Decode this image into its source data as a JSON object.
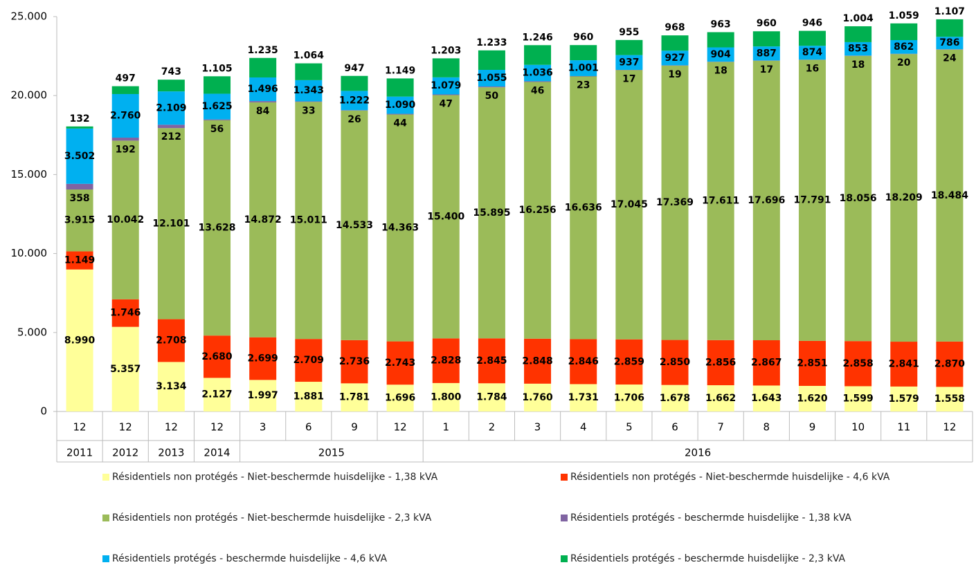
{
  "chart_data": {
    "type": "stacked_bar",
    "categories": [
      "12",
      "12",
      "12",
      "12",
      "3",
      "6",
      "9",
      "12",
      "1",
      "2",
      "3",
      "4",
      "5",
      "6",
      "7",
      "8",
      "9",
      "10",
      "11",
      "12"
    ],
    "x_groups": [
      {
        "label": "2011",
        "count": 1
      },
      {
        "label": "2012",
        "count": 1
      },
      {
        "label": "2013",
        "count": 1
      },
      {
        "label": "2014",
        "count": 1
      },
      {
        "label": "2015",
        "count": 4
      },
      {
        "label": "2016",
        "count": 12
      }
    ],
    "ylim": [
      0,
      25000
    ],
    "yticks": [
      0,
      {
        "value": 5000,
        "label": "5.000"
      },
      {
        "value": 10000,
        "label": "10.000"
      },
      {
        "value": 15000,
        "label": "15.000"
      },
      {
        "value": 20000,
        "label": "20.000"
      },
      {
        "value": 25000,
        "label": "25.000"
      }
    ],
    "series": [
      {
        "name": "Résidentiels non protégés - Niet-beschermde huisdelijke - 1,38 kVA",
        "color": "#ffff99",
        "values": [
          8990,
          5357,
          3134,
          2127,
          1997,
          1881,
          1781,
          1696,
          1800,
          1784,
          1760,
          1731,
          1706,
          1678,
          1662,
          1643,
          1620,
          1599,
          1579,
          1558
        ],
        "value_labels": [
          "8.990",
          "5.357",
          "3.134",
          "2.127",
          "1.997",
          "1.881",
          "1.781",
          "1.696",
          "1.800",
          "1.784",
          "1.760",
          "1.731",
          "1.706",
          "1.678",
          "1.662",
          "1.643",
          "1.620",
          "1.599",
          "1.579",
          "1.558"
        ]
      },
      {
        "name": "Résidentiels non protégés - Niet-beschermde huisdelijke - 4,6 kVA",
        "color": "#ff3300",
        "values": [
          1149,
          1746,
          2708,
          2680,
          2699,
          2709,
          2736,
          2743,
          2828,
          2845,
          2848,
          2846,
          2859,
          2850,
          2856,
          2867,
          2851,
          2858,
          2841,
          2870
        ],
        "value_labels": [
          "1.149",
          "1.746",
          "2.708",
          "2.680",
          "2.699",
          "2.709",
          "2.736",
          "2.743",
          "2.828",
          "2.845",
          "2.848",
          "2.846",
          "2.859",
          "2.850",
          "2.856",
          "2.867",
          "2.851",
          "2.858",
          "2.841",
          "2.870"
        ]
      },
      {
        "name": "Résidentiels non protégés - Niet-beschermde huisdelijke - 2,3 kVA",
        "color": "#9bbb59",
        "values": [
          3915,
          10042,
          12101,
          13628,
          14872,
          15011,
          14533,
          14363,
          15400,
          15895,
          16256,
          16636,
          17045,
          17369,
          17611,
          17696,
          17791,
          18056,
          18209,
          18484
        ],
        "value_labels": [
          "3.915",
          "10.042",
          "12.101",
          "13.628",
          "14.872",
          "15.011",
          "14.533",
          "14.363",
          "15.400",
          "15.895",
          "16.256",
          "16.636",
          "17.045",
          "17.369",
          "17.611",
          "17.696",
          "17.791",
          "18.056",
          "18.209",
          "18.484"
        ]
      },
      {
        "name": "Résidentiels protégés - beschermde huisdelijke - 1,38 kVA",
        "color": "#8064a2",
        "values": [
          358,
          192,
          212,
          56,
          84,
          33,
          26,
          44,
          47,
          50,
          46,
          23,
          17,
          19,
          18,
          17,
          16,
          18,
          20,
          24
        ]
      },
      {
        "name": "Résidentiels protégés - beschermde huisdelijke - 4,6 kVA",
        "color": "#00b0f0",
        "values": [
          3502,
          2760,
          2109,
          1625,
          1496,
          1343,
          1222,
          1090,
          1079,
          1055,
          1036,
          1001,
          937,
          927,
          904,
          887,
          874,
          853,
          862,
          786
        ],
        "value_labels": [
          "3.502",
          "2.760",
          "2.109",
          "1.625",
          "1.496",
          "1.343",
          "1.222",
          "1.090",
          "1.079",
          "1.055",
          "1.036",
          "1.001",
          "937",
          "927",
          "904",
          "887",
          "874",
          "853",
          "862",
          "786"
        ]
      },
      {
        "name": "Résidentiels protégés - beschermde huisdelijke - 2,3 kVA",
        "color": "#00b050",
        "values": [
          132,
          497,
          743,
          1105,
          1235,
          1064,
          947,
          1149,
          1203,
          1233,
          1246,
          960,
          955,
          968,
          963,
          960,
          946,
          1004,
          1059,
          1107
        ],
        "value_labels": [
          "132",
          "497",
          "743",
          "1.105",
          "1.235",
          "1.064",
          "947",
          "1.149",
          "1.203",
          "1.233",
          "1.246",
          "960",
          "955",
          "968",
          "963",
          "960",
          "946",
          "1.004",
          "1.059",
          "1.107"
        ]
      }
    ]
  }
}
